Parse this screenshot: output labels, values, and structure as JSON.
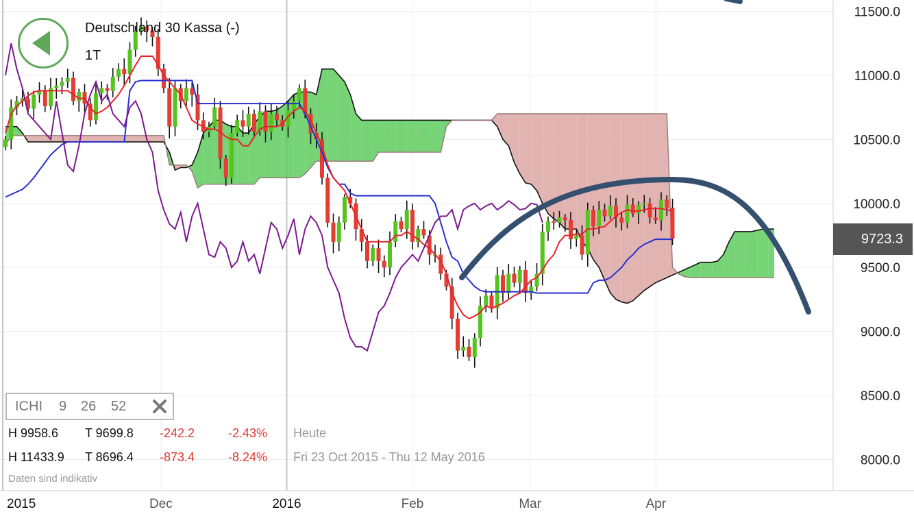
{
  "header": {
    "title": "Deutschland 30 Kassa (-)",
    "interval": "1T"
  },
  "indicator": {
    "name": "ICHI",
    "params": [
      "9",
      "26",
      "52"
    ]
  },
  "stats": [
    {
      "high": "H 9958.6",
      "low": "T 9699.8",
      "change": "-242.2",
      "pct": "-2.43%",
      "period": "Heute"
    },
    {
      "high": "H 11433.9",
      "low": "T 8696.4",
      "change": "-873.4",
      "pct": "-8.24%",
      "period": "Fri 23 Oct 2015 - Thu 12 May 2016"
    }
  ],
  "disclaimer": "Daten sind indikativ",
  "last_price": "9723.3",
  "colors": {
    "up": "#55c41d",
    "down": "#e43d33",
    "tenkan": "#e8222a",
    "kijun": "#2a2fd0",
    "chikou": "#7a1a8e",
    "cloud_bull": "#5ecb5e",
    "cloud_bear": "#dca7a4",
    "trend": "#34506e",
    "accent": "#5fa85a"
  },
  "chart_data": {
    "type": "candlestick",
    "title": "Deutschland 30 Kassa (-)",
    "xlabel": "",
    "ylabel": "",
    "ylim": [
      7500,
      11700
    ],
    "yticks": [
      "11500.0",
      "11000.0",
      "10500.0",
      "10000.0",
      "9500.0",
      "9000.0",
      "8500.0",
      "8000.0"
    ],
    "xticks": [
      {
        "label": "2015",
        "x": "2015-10-23",
        "year": true
      },
      {
        "label": "Dec",
        "x": "2015-12-01"
      },
      {
        "label": "2016",
        "x": "2016-01-01",
        "year": true
      },
      {
        "label": "Feb",
        "x": "2016-02-01"
      },
      {
        "label": "Mar",
        "x": "2016-03-01"
      },
      {
        "label": "Apr",
        "x": "2016-04-01"
      }
    ],
    "xrange": [
      "2015-10-23",
      "2016-05-12"
    ],
    "close": [
      10500,
      10750,
      10800,
      10820,
      10740,
      10850,
      10880,
      10760,
      10900,
      10920,
      10950,
      10980,
      10800,
      10870,
      10780,
      10650,
      10860,
      10900,
      10880,
      10990,
      11050,
      11010,
      11200,
      11350,
      11380,
      11350,
      11300,
      11050,
      10900,
      10600,
      10900,
      10800,
      10900,
      10850,
      10650,
      10560,
      10600,
      10750,
      10350,
      10200,
      10550,
      10650,
      10600,
      10700,
      10560,
      10720,
      10560,
      10700,
      10650,
      10600,
      10730,
      10800,
      10900,
      10700,
      10550,
      10500,
      10200,
      9850,
      9700,
      9850,
      10050,
      10000,
      9800,
      9700,
      9550,
      9650,
      9550,
      9500,
      9700,
      9860,
      9800,
      9950,
      9700,
      9800,
      9750,
      9600,
      9600,
      9450,
      9350,
      9100,
      8850,
      8880,
      8800,
      8950,
      9200,
      9280,
      9180,
      9440,
      9300,
      9450,
      9380,
      9480,
      9300,
      9350,
      9450,
      9780,
      9860,
      9850,
      9890,
      9870,
      9720,
      9750,
      9600,
      9950,
      9820,
      9950,
      9900,
      9980,
      9890,
      9850,
      9990,
      9920,
      9990,
      10000,
      9890,
      9870,
      10030,
      9966,
      9723.3
    ],
    "tenkan": [
      10550,
      10700,
      10760,
      10800,
      10840,
      10870,
      10880,
      10880,
      10880,
      10880,
      10880,
      10880,
      10850,
      10820,
      10820,
      10750,
      10700,
      10720,
      10750,
      10800,
      10850,
      10920,
      11000,
      11080,
      11150,
      11150,
      11150,
      11080,
      11000,
      10950,
      10900,
      10850,
      10750,
      10650,
      10620,
      10600,
      10580,
      10580,
      10560,
      10520,
      10500,
      10500,
      10450,
      10450,
      10520,
      10580,
      10600,
      10600,
      10600,
      10620,
      10680,
      10720,
      10750,
      10720,
      10650,
      10550,
      10450,
      10300,
      10200,
      10150,
      10100,
      10000,
      9900,
      9800,
      9700,
      9700,
      9700,
      9700,
      9700,
      9750,
      9750,
      9780,
      9750,
      9720,
      9680,
      9650,
      9600,
      9550,
      9450,
      9300,
      9200,
      9130,
      9100,
      9120,
      9150,
      9200,
      9180,
      9200,
      9220,
      9250,
      9280,
      9300,
      9350,
      9400,
      9420,
      9480,
      9550,
      9600,
      9700,
      9750,
      9750,
      9760,
      9760,
      9800,
      9800,
      9810,
      9820,
      9860,
      9900,
      9930,
      9950,
      9940,
      9940,
      9950,
      9960,
      9960,
      9960,
      9950,
      9940
    ],
    "kijun": [
      10050,
      10070,
      10090,
      10110,
      10150,
      10200,
      10260,
      10320,
      10380,
      10420,
      10460,
      10480,
      10480,
      10480,
      10480,
      10480,
      10480,
      10480,
      10480,
      10480,
      10480,
      10480,
      10880,
      10950,
      10960,
      10960,
      10960,
      10960,
      10960,
      10960,
      10960,
      10960,
      10960,
      10960,
      10780,
      10780,
      10780,
      10780,
      10780,
      10780,
      10780,
      10780,
      10780,
      10780,
      10780,
      10780,
      10780,
      10780,
      10780,
      10780,
      10780,
      10780,
      10780,
      10700,
      10600,
      10500,
      10400,
      10280,
      10200,
      10150,
      10150,
      10080,
      10060,
      10060,
      10060,
      10060,
      10060,
      10060,
      10060,
      10060,
      10060,
      10060,
      10060,
      10060,
      10060,
      10060,
      10000,
      9850,
      9700,
      9580,
      9550,
      9450,
      9400,
      9350,
      9320,
      9310,
      9310,
      9310,
      9310,
      9310,
      9310,
      9310,
      9310,
      9310,
      9300,
      9300,
      9300,
      9300,
      9300,
      9300,
      9300,
      9300,
      9300,
      9300,
      9380,
      9400,
      9400,
      9420,
      9460,
      9500,
      9560,
      9600,
      9650,
      9680,
      9700,
      9720,
      9720,
      9720,
      9720
    ],
    "chikou": [
      11000,
      11250,
      11050,
      10900,
      10700,
      10650,
      10600,
      10550,
      10500,
      10800,
      10550,
      10300,
      10250,
      10450,
      10700,
      10850,
      10950,
      10800,
      10850,
      10700,
      10650,
      10600,
      10750,
      10800,
      10700,
      10500,
      10400,
      10100,
      9950,
      9840,
      9800,
      9930,
      9700,
      9900,
      10000,
      9800,
      9600,
      9580,
      9700,
      9650,
      9500,
      9550,
      9700,
      9550,
      9600,
      9450,
      9650,
      9850,
      9800,
      9650,
      9750,
      9880,
      9600,
      9800,
      9900,
      9850,
      9750,
      9500,
      9400,
      9300,
      9100,
      8950,
      8880,
      8880,
      8850,
      9000,
      9150,
      9200,
      9300,
      9420,
      9500,
      9550,
      9600,
      9550,
      9650,
      9750,
      9850,
      9900,
      9900,
      9950,
      9800,
      9950,
      9980,
      10000,
      9950,
      9980,
      10000,
      9950,
      9980,
      10020,
      9990,
      9950,
      9960,
      10000,
      9990,
      9850
    ],
    "cloud": {
      "span_a": [
        10600,
        10600,
        10600,
        10550,
        10480,
        10480,
        10480,
        10480,
        10480,
        10480,
        10480,
        10480,
        10480,
        10480,
        10480,
        10480,
        10480,
        10480,
        10480,
        10480,
        10480,
        10480,
        10480,
        10480,
        10480,
        10480,
        10480,
        10480,
        10480,
        10400,
        10260,
        10280,
        10280,
        10300,
        10400,
        10550,
        10600,
        10650,
        10650,
        10620,
        10600,
        10600,
        10550,
        10550,
        10620,
        10680,
        10720,
        10720,
        10730,
        10760,
        10800,
        10850,
        10870,
        10870,
        10870,
        10850,
        11050,
        11050,
        11050,
        11000,
        10950,
        10850,
        10700,
        10650,
        10650,
        10650,
        10650,
        10650,
        10650,
        10650,
        10650,
        10650,
        10650,
        10650,
        10650,
        10650,
        10650,
        10650,
        10650,
        10650,
        10650,
        10650,
        10650,
        10650,
        10650,
        10650,
        10650,
        10600,
        10500,
        10450,
        10320,
        10230,
        10160,
        10150,
        10100,
        10000,
        9920,
        9880,
        9850,
        9800,
        9800,
        9800,
        9700,
        9650,
        9560,
        9500,
        9400,
        9300,
        9250,
        9230,
        9220,
        9240,
        9280,
        9320,
        9350,
        9380,
        9400,
        9420,
        9440,
        9460,
        9480,
        9500,
        9520,
        9540,
        9540,
        9540,
        9550,
        9600,
        9700,
        9780,
        9780,
        9780,
        9780,
        9790,
        9800,
        9800,
        9800
      ],
      "span_b": [
        10450,
        10530,
        10530,
        10530,
        10530,
        10530,
        10530,
        10530,
        10530,
        10530,
        10530,
        10530,
        10530,
        10530,
        10530,
        10530,
        10530,
        10530,
        10530,
        10530,
        10530,
        10530,
        10530,
        10530,
        10530,
        10530,
        10530,
        10530,
        10530,
        10300,
        10300,
        10300,
        10300,
        10250,
        10120,
        10150,
        10150,
        10150,
        10150,
        10150,
        10150,
        10150,
        10150,
        10150,
        10150,
        10200,
        10200,
        10200,
        10200,
        10200,
        10200,
        10200,
        10200,
        10230,
        10280,
        10330,
        10330,
        10330,
        10330,
        10330,
        10330,
        10330,
        10330,
        10330,
        10330,
        10330,
        10400,
        10400,
        10400,
        10400,
        10400,
        10400,
        10400,
        10400,
        10400,
        10400,
        10400,
        10400,
        10600,
        10650,
        10650,
        10650,
        10650,
        10650,
        10650,
        10650,
        10650,
        10700,
        10700,
        10700,
        10700,
        10700,
        10700,
        10700,
        10700,
        10700,
        10700,
        10700,
        10700,
        10700,
        10700,
        10700,
        10700,
        10700,
        10700,
        10700,
        10700,
        10700,
        10700,
        10700,
        10700,
        10700,
        10700,
        10700,
        10700,
        10700,
        10700,
        10700,
        9500,
        9450,
        9430,
        9420,
        9420,
        9420,
        9420,
        9420,
        9420,
        9420,
        9420,
        9420,
        9420,
        9420,
        9420,
        9420,
        9420,
        9420,
        9420,
        9420,
        9420
      ]
    },
    "last": 9723.3
  }
}
